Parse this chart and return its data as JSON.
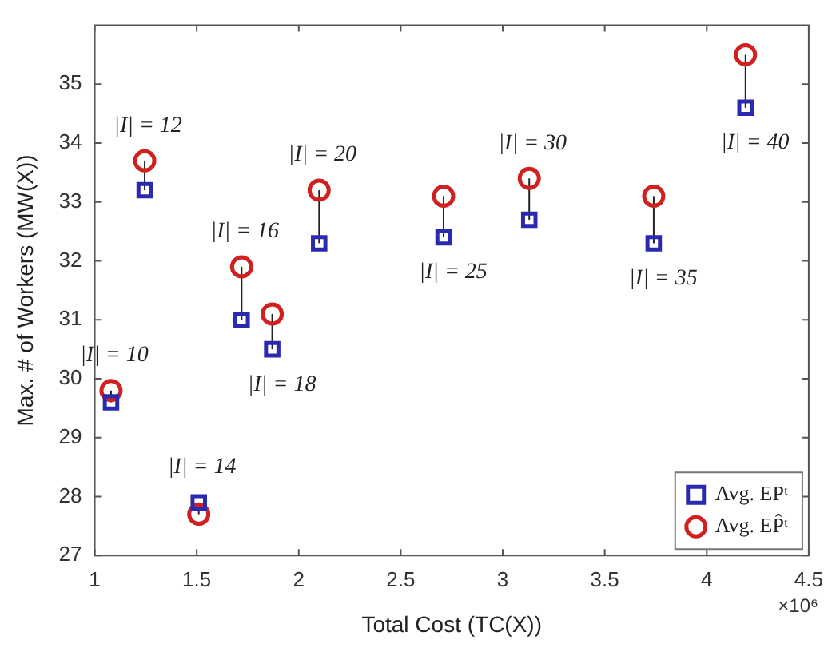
{
  "chart_data": {
    "type": "scatter",
    "xlabel": "Total Cost (TC(X))",
    "ylabel": "Max. # of Workers (MW(X))",
    "xlim": [
      1,
      4.5
    ],
    "xticks": [
      1,
      1.5,
      2,
      2.5,
      3,
      3.5,
      4,
      4.5
    ],
    "ylim": [
      27,
      36
    ],
    "yticks": [
      27,
      28,
      29,
      30,
      31,
      32,
      33,
      34,
      35
    ],
    "x": [
      1.08,
      1.245,
      1.51,
      1.72,
      1.87,
      2.1,
      2.71,
      3.13,
      3.74,
      4.19
    ],
    "series": [
      {
        "name": "Avg. EPᵗ",
        "color": "#2a2ab0",
        "marker": "square",
        "values": [
          29.6,
          33.2,
          27.9,
          31.0,
          30.5,
          32.3,
          32.4,
          32.7,
          32.3,
          34.6
        ]
      },
      {
        "name": "Avg. EP̂ᵗ",
        "color": "#d02020",
        "marker": "circle",
        "values": [
          29.8,
          33.7,
          27.7,
          31.9,
          31.1,
          33.2,
          33.1,
          33.4,
          33.1,
          35.5
        ]
      }
    ],
    "legend": "bottom right",
    "annotations": [
      "×10⁶",
      {
        "text": "|I| = 10",
        "x": 1.08,
        "y": 29.8
      },
      {
        "text": "|I| = 12",
        "x": 1.245,
        "y": 33.7
      },
      {
        "text": "|I| = 14",
        "x": 1.51,
        "y": 27.9
      },
      {
        "text": "|I| = 16",
        "x": 1.72,
        "y": 31.9
      },
      {
        "text": "|I| = 18",
        "x": 1.87,
        "y": 30.5
      },
      {
        "text": "|I| = 20",
        "x": 2.1,
        "y": 33.2
      },
      {
        "text": "|I| = 25",
        "x": 2.71,
        "y": 32.4
      },
      {
        "text": "|I| = 30",
        "x": 3.13,
        "y": 33.4
      },
      {
        "text": "|I| = 35",
        "x": 3.74,
        "y": 32.3
      },
      {
        "text": "|I| = 40",
        "x": 4.19,
        "y": 34.6
      }
    ]
  }
}
